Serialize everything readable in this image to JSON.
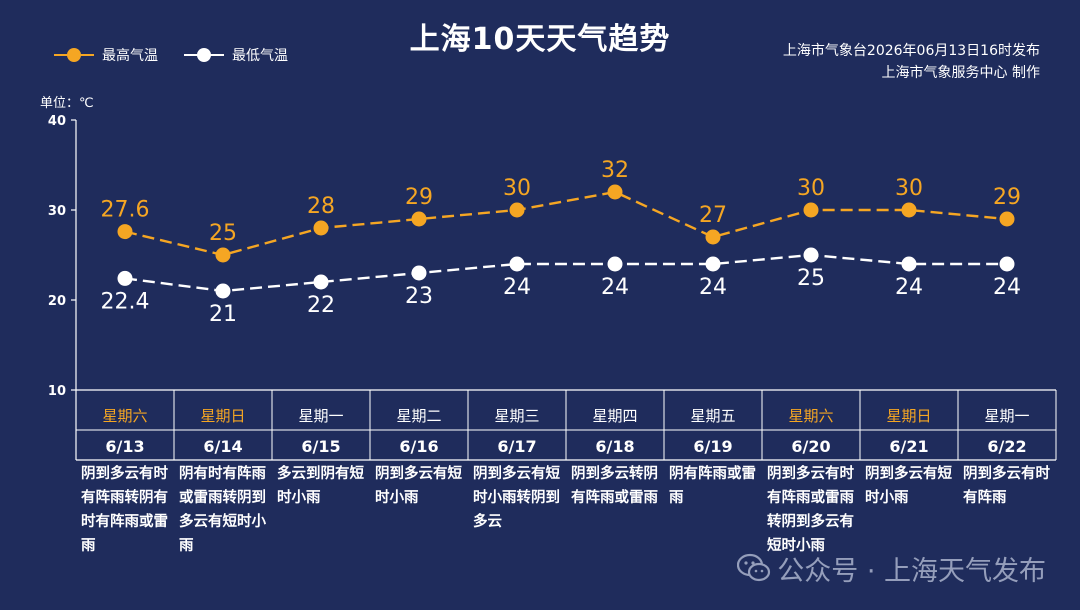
{
  "title": "上海10天天气趋势",
  "publisher": {
    "line1": "上海市气象台2026年06月13日16时发布",
    "line2": "上海市气象服务中心  制作"
  },
  "legend": {
    "high_label": "最高气温",
    "low_label": "最低气温"
  },
  "unit_label": "单位：℃",
  "watermark": "公众号 · 上海天气发布",
  "colors": {
    "background": "#1f2c5c",
    "high": "#f5a623",
    "low": "#ffffff",
    "weekend": "#f5a623",
    "grid": "#ffffff"
  },
  "days": [
    {
      "weekday": "星期六",
      "date": "6/13",
      "weekend": true,
      "weather": "阴到多云有时有阵雨转阴有时有阵雨或雷雨"
    },
    {
      "weekday": "星期日",
      "date": "6/14",
      "weekend": true,
      "weather": "阴有时有阵雨或雷雨转阴到多云有短时小雨"
    },
    {
      "weekday": "星期一",
      "date": "6/15",
      "weekend": false,
      "weather": "多云到阴有短时小雨"
    },
    {
      "weekday": "星期二",
      "date": "6/16",
      "weekend": false,
      "weather": "阴到多云有短时小雨"
    },
    {
      "weekday": "星期三",
      "date": "6/17",
      "weekend": false,
      "weather": "阴到多云有短时小雨转阴到多云"
    },
    {
      "weekday": "星期四",
      "date": "6/18",
      "weekend": false,
      "weather": "阴到多云转阴有阵雨或雷雨"
    },
    {
      "weekday": "星期五",
      "date": "6/19",
      "weekend": false,
      "weather": "阴有阵雨或雷雨"
    },
    {
      "weekday": "星期六",
      "date": "6/20",
      "weekend": true,
      "weather": "阴到多云有时有阵雨或雷雨转阴到多云有短时小雨"
    },
    {
      "weekday": "星期日",
      "date": "6/21",
      "weekend": true,
      "weather": "阴到多云有短时小雨"
    },
    {
      "weekday": "星期一",
      "date": "6/22",
      "weekend": false,
      "weather": "阴到多云有时有阵雨"
    }
  ],
  "chart_data": {
    "type": "line",
    "title": "上海10天天气趋势",
    "ylabel": "单位：℃",
    "ylim": [
      10,
      40
    ],
    "yticks": [
      10,
      20,
      30,
      40
    ],
    "grid": false,
    "legend_position": "top-left",
    "categories": [
      "6/13",
      "6/14",
      "6/15",
      "6/16",
      "6/17",
      "6/18",
      "6/19",
      "6/20",
      "6/21",
      "6/22"
    ],
    "series": [
      {
        "name": "最高气温",
        "values": [
          27.6,
          25,
          28,
          29,
          30,
          32,
          27,
          30,
          30,
          29
        ]
      },
      {
        "name": "最低气温",
        "values": [
          22.4,
          21,
          22,
          23,
          24,
          24,
          24,
          25,
          24,
          24
        ]
      }
    ]
  }
}
